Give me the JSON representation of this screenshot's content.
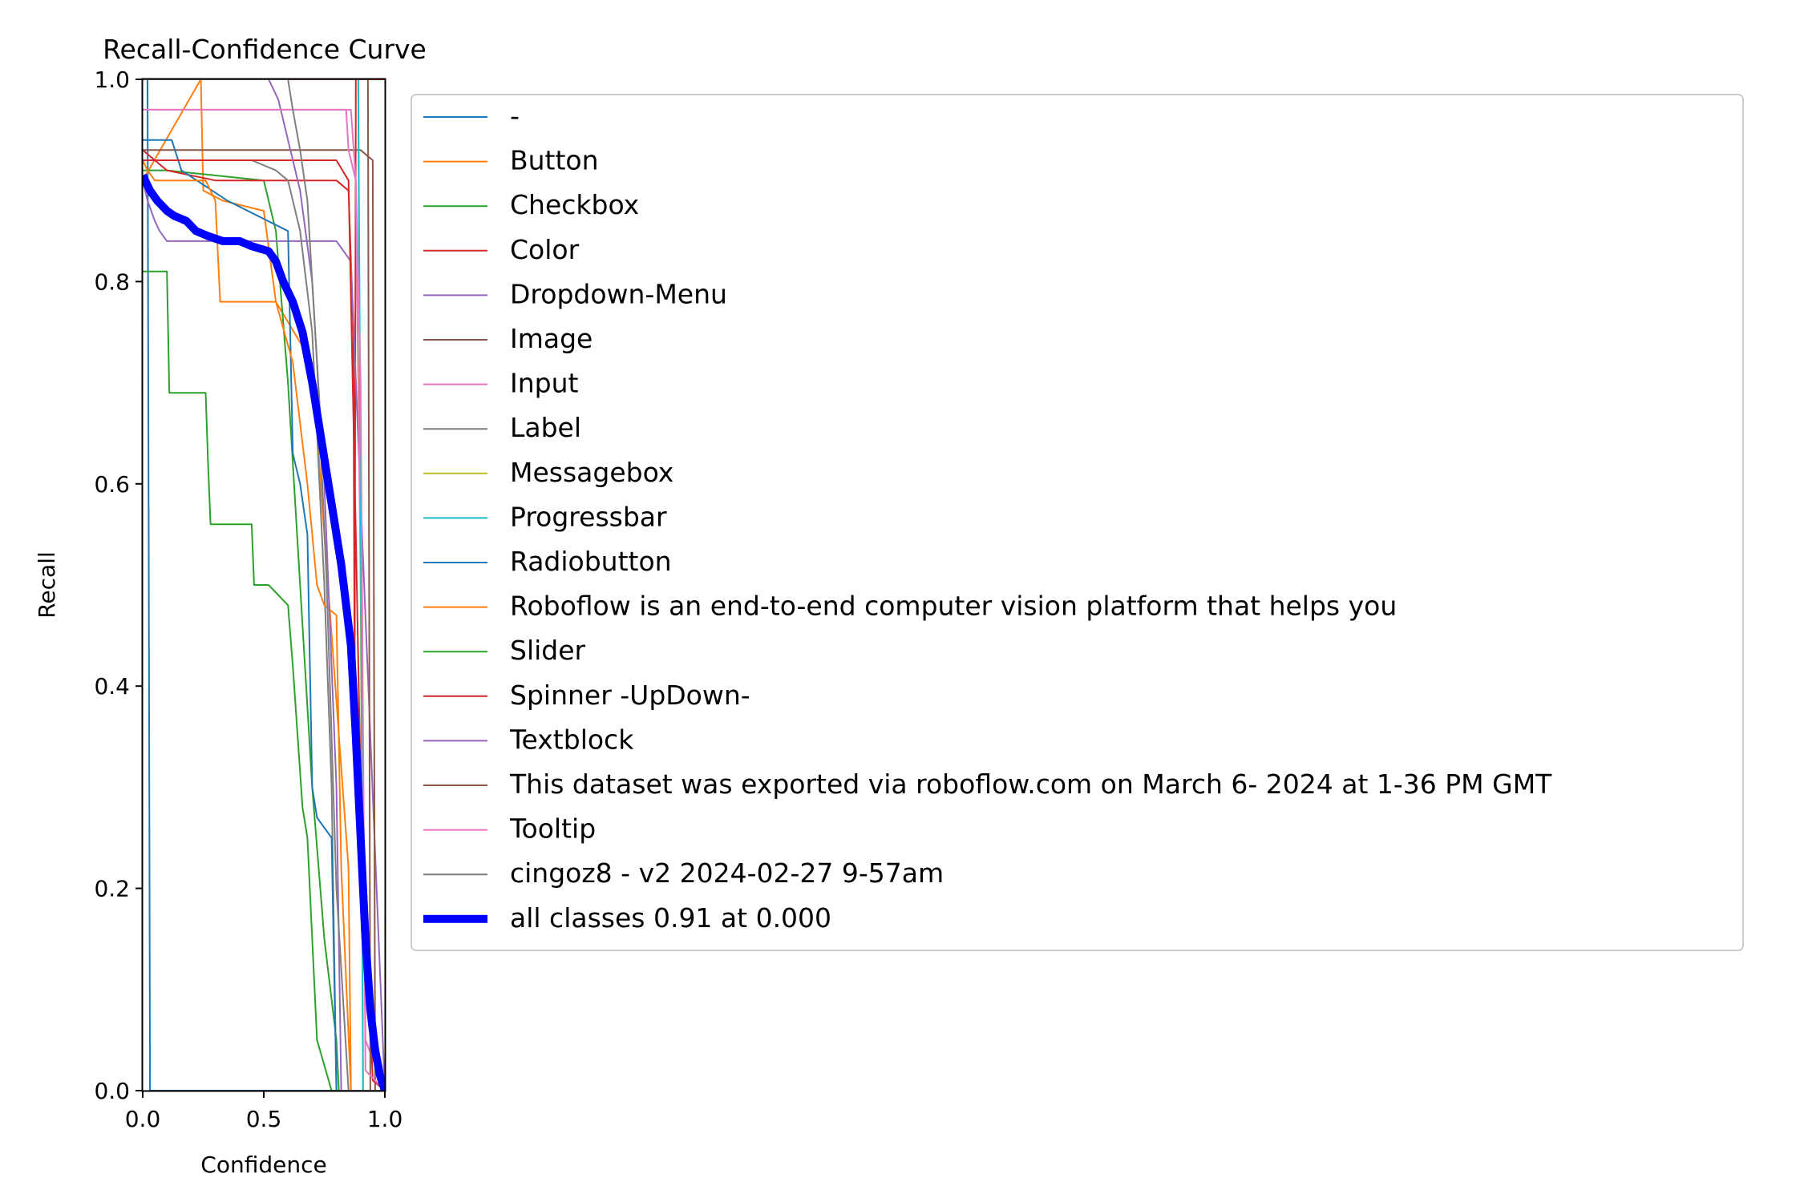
{
  "chart_data": {
    "type": "line",
    "title": "Recall-Confidence Curve",
    "xlabel": "Confidence",
    "ylabel": "Recall",
    "xlim": [
      0,
      1
    ],
    "ylim": [
      0,
      1
    ],
    "xticks": [
      "0.0",
      "0.5",
      "1.0"
    ],
    "yticks": [
      "0.0",
      "0.2",
      "0.4",
      "0.6",
      "0.8",
      "1.0"
    ],
    "legend_position": "outside-right",
    "grid": false,
    "series": [
      {
        "name": "-",
        "color": "#1f77b4",
        "width": 1,
        "x": [
          0.0,
          0.02,
          0.025,
          0.03,
          0.9,
          1.0
        ],
        "y": [
          1.0,
          1.0,
          0.5,
          0.0,
          0.0,
          0.0
        ]
      },
      {
        "name": "Button",
        "color": "#ff7f0e",
        "width": 1,
        "x": [
          0.0,
          0.24,
          0.25,
          0.33,
          0.5,
          0.55,
          0.7,
          0.75,
          0.85,
          0.86,
          1.0
        ],
        "y": [
          0.9,
          1.0,
          0.89,
          0.88,
          0.87,
          0.78,
          0.72,
          0.55,
          0.22,
          0.0,
          0.0
        ]
      },
      {
        "name": "Checkbox",
        "color": "#2ca02c",
        "width": 1,
        "x": [
          0.0,
          0.1,
          0.5,
          0.55,
          0.6,
          0.65,
          0.7,
          0.75,
          0.8,
          0.81,
          1.0
        ],
        "y": [
          0.91,
          0.91,
          0.9,
          0.85,
          0.7,
          0.5,
          0.3,
          0.15,
          0.05,
          0.0,
          0.0
        ]
      },
      {
        "name": "Color",
        "color": "#d62728",
        "width": 1,
        "x": [
          0.0,
          0.05,
          0.1,
          0.3,
          0.55,
          0.8,
          0.85,
          0.87,
          0.875,
          0.88,
          1.0
        ],
        "y": [
          0.93,
          0.92,
          0.91,
          0.9,
          0.9,
          0.9,
          0.89,
          0.75,
          0.4,
          1.0,
          1.0
        ]
      },
      {
        "name": "Dropdown-Menu",
        "color": "#9467bd",
        "width": 1,
        "x": [
          0.0,
          0.02,
          0.05,
          0.07,
          0.1,
          0.5,
          0.8,
          0.86,
          1.0
        ],
        "y": [
          0.9,
          0.88,
          0.86,
          0.85,
          0.84,
          0.84,
          0.84,
          0.82,
          0.0
        ]
      },
      {
        "name": "Image",
        "color": "#8c564b",
        "width": 1,
        "x": [
          0.0,
          0.85,
          0.9,
          0.95,
          0.96,
          1.0
        ],
        "y": [
          0.93,
          0.93,
          0.93,
          0.92,
          0.0,
          0.0
        ]
      },
      {
        "name": "Input",
        "color": "#e377c2",
        "width": 1,
        "x": [
          0.0,
          0.84,
          0.85,
          0.88,
          0.9,
          0.92,
          1.0
        ],
        "y": [
          0.97,
          0.97,
          0.93,
          0.9,
          0.5,
          0.05,
          0.0
        ]
      },
      {
        "name": "Label",
        "color": "#7f7f7f",
        "width": 1,
        "x": [
          0.0,
          0.45,
          0.55,
          0.6,
          0.65,
          0.7,
          0.75,
          0.78,
          0.8,
          1.0
        ],
        "y": [
          0.92,
          0.92,
          0.91,
          0.9,
          0.85,
          0.75,
          0.5,
          0.3,
          0.0,
          0.0
        ]
      },
      {
        "name": "Messagebox",
        "color": "#bcbd22",
        "width": 1,
        "x": [
          0.0,
          0.89,
          0.9,
          0.91,
          1.0
        ],
        "y": [
          1.0,
          1.0,
          0.5,
          0.0,
          0.0
        ]
      },
      {
        "name": "Progressbar",
        "color": "#17becf",
        "width": 1,
        "x": [
          0.0,
          0.89,
          0.9,
          0.91,
          1.0
        ],
        "y": [
          1.0,
          1.0,
          0.6,
          0.0,
          0.0
        ]
      },
      {
        "name": "Radiobutton",
        "color": "#1f77b4",
        "width": 1,
        "x": [
          0.0,
          0.12,
          0.16,
          0.35,
          0.6,
          0.62,
          0.65,
          0.68,
          0.7,
          0.72,
          0.78,
          0.8,
          1.0
        ],
        "y": [
          0.94,
          0.94,
          0.91,
          0.88,
          0.85,
          0.63,
          0.6,
          0.55,
          0.3,
          0.27,
          0.25,
          0.0,
          0.0
        ]
      },
      {
        "name": "Roboflow is an end-to-end computer vision platform that helps you",
        "color": "#ff7f0e",
        "width": 1,
        "x": [
          0.0,
          0.02,
          0.05,
          0.2,
          0.26,
          0.3,
          0.32,
          0.55,
          0.62,
          0.68,
          0.72,
          0.75,
          0.8,
          0.82,
          0.86,
          1.0
        ],
        "y": [
          0.92,
          0.91,
          0.9,
          0.9,
          0.9,
          0.88,
          0.78,
          0.78,
          0.72,
          0.6,
          0.5,
          0.48,
          0.47,
          0.22,
          0.0,
          0.0
        ]
      },
      {
        "name": "Slider",
        "color": "#2ca02c",
        "width": 1,
        "x": [
          0.0,
          0.02,
          0.1,
          0.11,
          0.26,
          0.27,
          0.28,
          0.45,
          0.46,
          0.52,
          0.6,
          0.62,
          0.66,
          0.68,
          0.72,
          0.78,
          1.0
        ],
        "y": [
          0.81,
          0.81,
          0.81,
          0.69,
          0.69,
          0.62,
          0.56,
          0.56,
          0.5,
          0.5,
          0.48,
          0.42,
          0.28,
          0.25,
          0.05,
          0.0,
          0.0
        ]
      },
      {
        "name": "Spinner -UpDown-",
        "color": "#d62728",
        "width": 1,
        "x": [
          0.0,
          0.8,
          0.85,
          0.88,
          0.9,
          0.95,
          1.0
        ],
        "y": [
          0.92,
          0.92,
          0.9,
          0.55,
          0.3,
          0.01,
          0.0
        ]
      },
      {
        "name": "Textblock",
        "color": "#9467bd",
        "width": 1,
        "x": [
          0.0,
          0.52,
          0.56,
          0.6,
          0.65,
          0.7,
          0.75,
          0.8,
          0.82,
          1.0
        ],
        "y": [
          1.0,
          1.0,
          0.98,
          0.94,
          0.89,
          0.8,
          0.6,
          0.3,
          0.0,
          0.0
        ]
      },
      {
        "name": "This dataset was exported via roboflow.com on March 6- 2024 at 1-36 PM GMT",
        "color": "#8c564b",
        "width": 1,
        "x": [
          0.0,
          0.93,
          0.94,
          1.0
        ],
        "y": [
          1.0,
          1.0,
          0.0,
          0.0
        ]
      },
      {
        "name": "Tooltip",
        "color": "#e377c2",
        "width": 1,
        "x": [
          0.0,
          0.86,
          0.88,
          0.9,
          0.92,
          1.0
        ],
        "y": [
          0.97,
          0.97,
          0.9,
          0.7,
          0.02,
          0.0
        ]
      },
      {
        "name": "cingoz8 - v2 2024-02-27 9-57am",
        "color": "#7f7f7f",
        "width": 1,
        "x": [
          0.0,
          0.6,
          0.62,
          0.65,
          0.68,
          0.72,
          0.76,
          0.8,
          0.85,
          1.0
        ],
        "y": [
          1.0,
          1.0,
          0.97,
          0.93,
          0.88,
          0.72,
          0.5,
          0.2,
          0.0,
          0.0
        ]
      },
      {
        "name": "all classes 0.91 at 0.000",
        "color": "#0000ff",
        "width": 5,
        "x": [
          0.0,
          0.03,
          0.06,
          0.1,
          0.13,
          0.18,
          0.22,
          0.27,
          0.33,
          0.4,
          0.45,
          0.52,
          0.55,
          0.58,
          0.62,
          0.66,
          0.7,
          0.74,
          0.78,
          0.82,
          0.84,
          0.86,
          0.88,
          0.9,
          0.92,
          0.94,
          0.96,
          0.98,
          1.0
        ],
        "y": [
          0.905,
          0.89,
          0.88,
          0.87,
          0.865,
          0.86,
          0.85,
          0.845,
          0.84,
          0.84,
          0.835,
          0.83,
          0.82,
          0.8,
          0.78,
          0.75,
          0.7,
          0.64,
          0.58,
          0.52,
          0.48,
          0.44,
          0.35,
          0.25,
          0.15,
          0.08,
          0.04,
          0.015,
          0.0
        ]
      }
    ]
  }
}
